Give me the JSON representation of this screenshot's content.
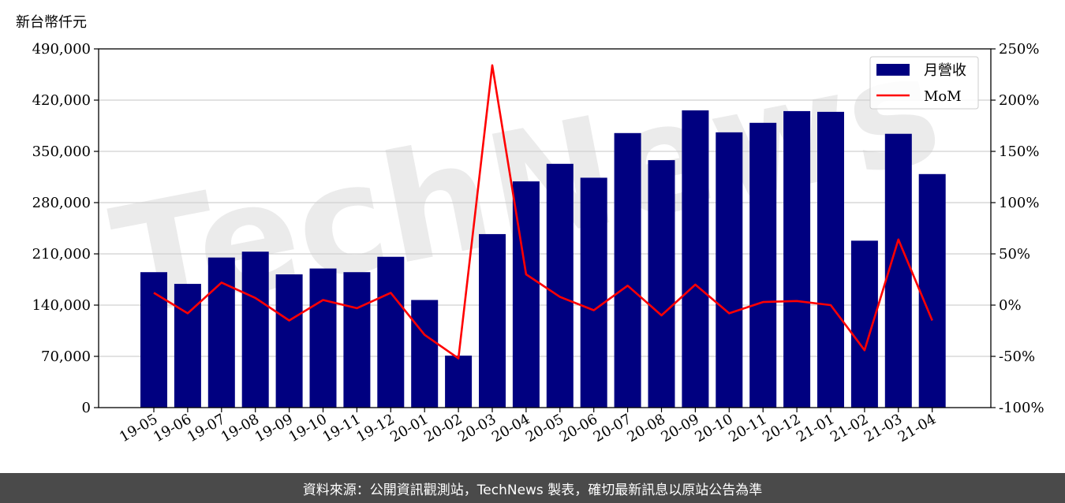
{
  "colors": {
    "bar": "#000080",
    "line": "#ff0000",
    "footer_bg": "#4a4a4a",
    "watermark": "#e8e8e8"
  },
  "watermark_label": "TechNews",
  "footer": {
    "text": "資料來源：公開資訊觀測站，TechNews 製表，確切最新訊息以原站公告為準"
  },
  "chart_data": {
    "type": "bar",
    "ylabel": "新台幣仟元",
    "categories": [
      "19-05",
      "19-06",
      "19-07",
      "19-08",
      "19-09",
      "19-10",
      "19-11",
      "19-12",
      "20-01",
      "20-02",
      "20-03",
      "20-04",
      "20-05",
      "20-06",
      "20-07",
      "20-08",
      "20-09",
      "20-10",
      "20-11",
      "20-12",
      "21-01",
      "21-02",
      "21-03",
      "21-04"
    ],
    "series": [
      {
        "name": "月營收",
        "type": "bar",
        "axis": "left",
        "values": [
          185000,
          169000,
          205000,
          213000,
          182000,
          190000,
          185000,
          206000,
          147000,
          71000,
          237000,
          309000,
          333000,
          314000,
          375000,
          338000,
          406000,
          376000,
          389000,
          405000,
          404000,
          228000,
          374000,
          319000
        ]
      },
      {
        "name": "MoM",
        "type": "line",
        "axis": "right",
        "unit": "%",
        "values": [
          12,
          -8,
          22,
          7,
          -15,
          5,
          -3,
          12,
          -29,
          -52,
          234,
          30,
          8,
          -5,
          19,
          -10,
          20,
          -8,
          3,
          4,
          0,
          -44,
          64,
          -15
        ]
      }
    ],
    "ylim": [
      0,
      490000
    ],
    "yticks": [
      "0",
      "70,000",
      "140,000",
      "210,000",
      "280,000",
      "350,000",
      "420,000",
      "490,000"
    ],
    "ylim_right": [
      -100,
      250
    ],
    "yticks_right": [
      "-100%",
      "-50%",
      "0%",
      "50%",
      "100%",
      "150%",
      "200%",
      "250%"
    ],
    "grid": true,
    "legend_position": "top-right"
  }
}
